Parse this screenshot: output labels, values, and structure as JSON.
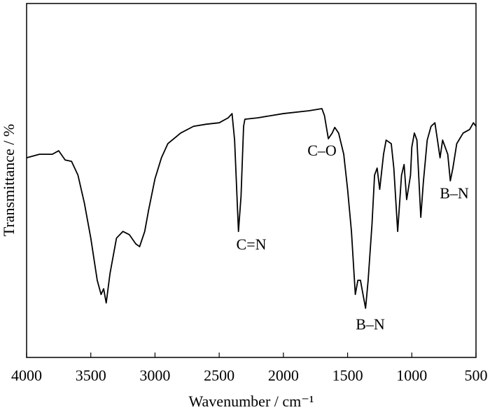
{
  "chart_data": {
    "type": "line",
    "x_label": "Wavenumber / cm⁻¹",
    "y_label": "Transmittance / %",
    "annotations": [
      "C=N",
      "C–O",
      "B–N",
      "B–N"
    ],
    "x": [
      4000,
      3900,
      3800,
      3750,
      3700,
      3650,
      3600,
      3550,
      3500,
      3450,
      3420,
      3400,
      3380,
      3350,
      3300,
      3250,
      3200,
      3150,
      3120,
      3080,
      3050,
      3000,
      2950,
      2900,
      2800,
      2700,
      2600,
      2500,
      2430,
      2400,
      2380,
      2350,
      2330,
      2310,
      2300,
      2200,
      2000,
      1800,
      1700,
      1680,
      1650,
      1620,
      1600,
      1570,
      1530,
      1500,
      1470,
      1440,
      1420,
      1400,
      1380,
      1360,
      1340,
      1310,
      1290,
      1270,
      1250,
      1220,
      1200,
      1160,
      1140,
      1110,
      1080,
      1060,
      1040,
      1010,
      1000,
      980,
      960,
      930,
      910,
      880,
      850,
      820,
      800,
      780,
      760,
      740,
      720,
      700,
      680,
      650,
      600,
      550,
      520,
      500
    ],
    "series": [
      {
        "color": "#000000",
        "values": [
          56.4,
          57.4,
          57.4,
          58.4,
          55.8,
          55.4,
          51.5,
          43.6,
          33.7,
          21.8,
          17.8,
          19.4,
          15.4,
          23.8,
          33.7,
          35.6,
          34.7,
          32.1,
          31.3,
          35.6,
          41.6,
          50.5,
          56.4,
          60.4,
          63.4,
          65.3,
          65.9,
          66.3,
          67.7,
          68.9,
          61.4,
          35.6,
          45.5,
          65.3,
          67.3,
          67.7,
          68.9,
          69.7,
          70.3,
          68.3,
          61.8,
          63.4,
          65.0,
          63.4,
          57.4,
          47.5,
          35.6,
          17.8,
          21.8,
          21.8,
          17.8,
          13.9,
          21.8,
          37.6,
          51.5,
          53.5,
          47.5,
          57.4,
          61.4,
          60.4,
          53.5,
          35.6,
          51.5,
          54.5,
          44.6,
          51.5,
          59.4,
          63.4,
          61.4,
          39.6,
          49.5,
          61.4,
          65.3,
          66.3,
          61.4,
          56.4,
          61.4,
          59.4,
          57.4,
          49.9,
          53.5,
          60.4,
          63.4,
          64.4,
          66.3,
          65.3
        ]
      }
    ],
    "xlim": [
      4000,
      500
    ],
    "ylim": [
      0,
      100
    ],
    "xticks": [
      4000,
      3500,
      3000,
      2500,
      2000,
      1500,
      1000,
      500
    ]
  }
}
